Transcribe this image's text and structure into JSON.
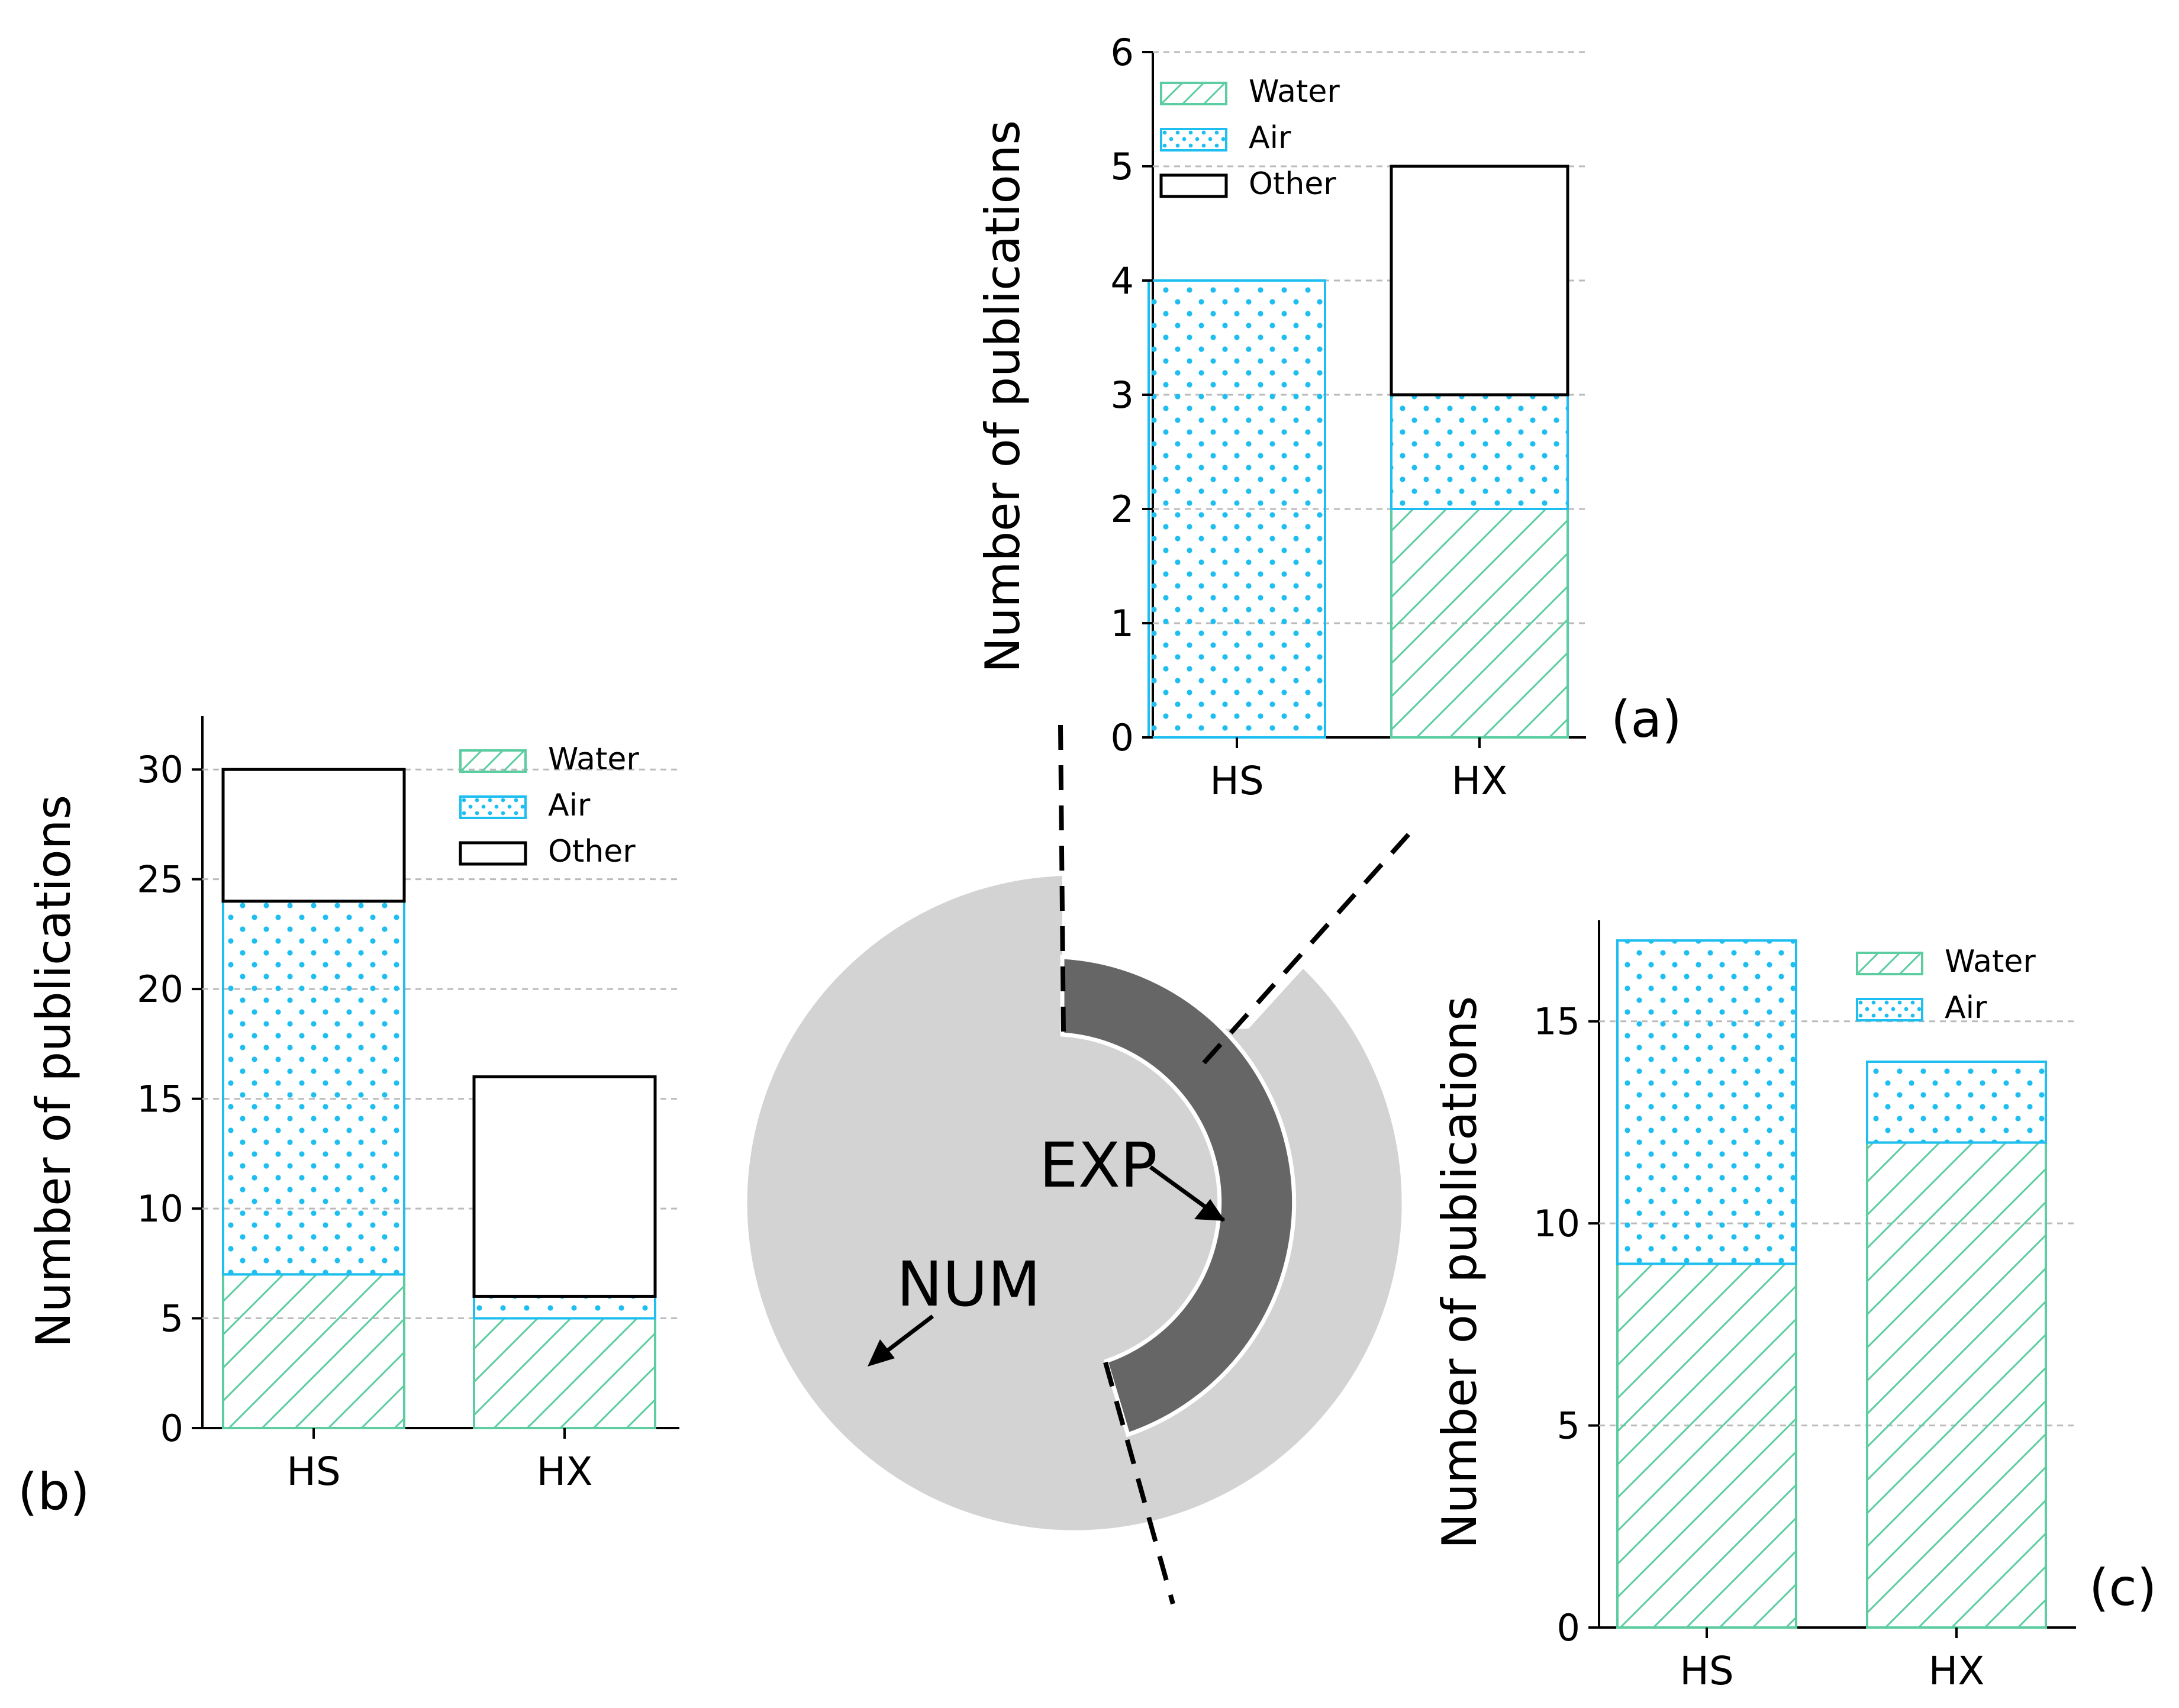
{
  "figure": {
    "colors": {
      "water": "#5ccda0",
      "air": "#1ebff0",
      "other": "#000000",
      "num_ring": "#d3d3d3",
      "exp_ring": "#666666",
      "grid": "#bbbbbb"
    },
    "donut": {
      "outer_label": "NUM",
      "inner_label": "EXP"
    }
  },
  "chart_data": [
    {
      "id": "a",
      "panel_label": "(a)",
      "type": "bar",
      "stacked": true,
      "ylabel": "Number of publications",
      "ylim": [
        0,
        6
      ],
      "yticks": [
        0,
        1,
        2,
        3,
        4,
        5,
        6
      ],
      "grid": "horizontal dashed",
      "legend_position": "top-left",
      "categories": [
        "HS",
        "HX"
      ],
      "series": [
        {
          "name": "Water",
          "key": "water",
          "values": [
            0,
            2
          ]
        },
        {
          "name": "Air",
          "key": "air",
          "values": [
            4,
            1
          ]
        },
        {
          "name": "Other",
          "key": "other",
          "values": [
            0,
            2
          ]
        }
      ]
    },
    {
      "id": "b",
      "panel_label": "(b)",
      "type": "bar",
      "stacked": true,
      "ylabel": "Number of publications",
      "ylim": [
        0,
        32
      ],
      "yticks": [
        0,
        5,
        10,
        15,
        20,
        25,
        30
      ],
      "grid": "horizontal dashed",
      "legend_position": "top-right",
      "categories": [
        "HS",
        "HX"
      ],
      "series": [
        {
          "name": "Water",
          "key": "water",
          "values": [
            7,
            5
          ]
        },
        {
          "name": "Air",
          "key": "air",
          "values": [
            17,
            1
          ]
        },
        {
          "name": "Other",
          "key": "other",
          "values": [
            6,
            10
          ]
        }
      ]
    },
    {
      "id": "c",
      "panel_label": "(c)",
      "type": "bar",
      "stacked": true,
      "ylabel": "Number of publications",
      "ylim": [
        0,
        17.5
      ],
      "yticks": [
        0,
        5,
        10,
        15
      ],
      "grid": "horizontal dashed",
      "legend_position": "top-right",
      "categories": [
        "HS",
        "HX"
      ],
      "series": [
        {
          "name": "Water",
          "key": "water",
          "values": [
            9,
            12
          ]
        },
        {
          "name": "Air",
          "key": "air",
          "values": [
            8,
            2
          ]
        }
      ]
    }
  ]
}
